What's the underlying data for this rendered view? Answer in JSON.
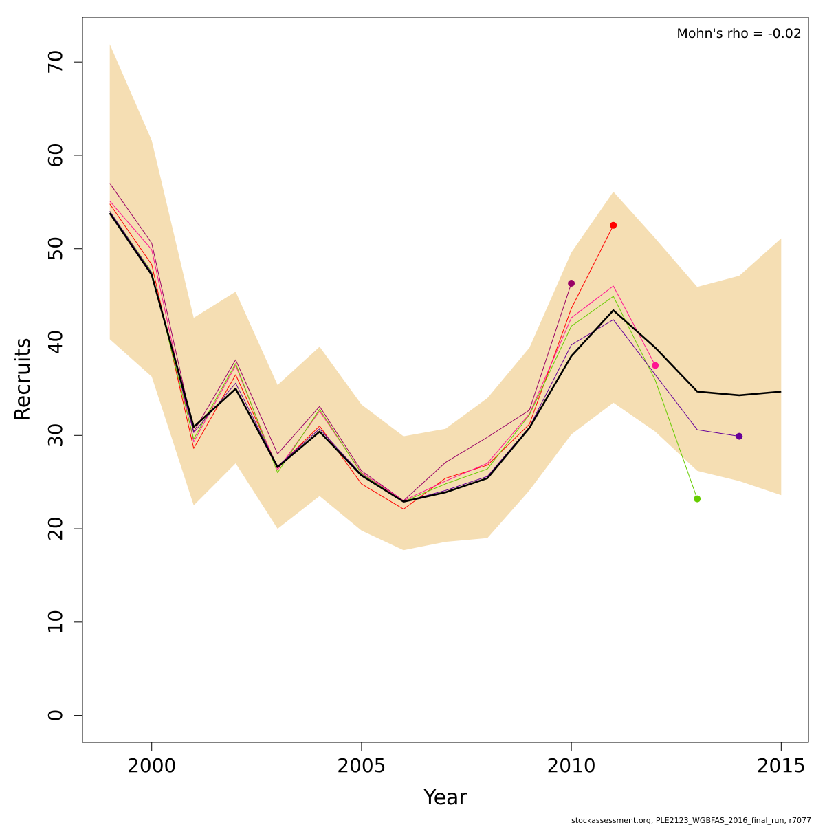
{
  "chart_data": {
    "type": "line",
    "xlabel": "Year",
    "ylabel": "Recruits",
    "xlim": [
      1998.35,
      2015.65
    ],
    "ylim": [
      -2.9,
      74.8
    ],
    "x_ticks": [
      2000,
      2005,
      2010,
      2015
    ],
    "y_ticks": [
      0,
      10,
      20,
      30,
      40,
      50,
      60,
      70
    ],
    "annotation": "Mohn's rho = -0.02",
    "footer": "stockassessment.org, PLE2123_WGBFAS_2016_final_run, r7077",
    "band": {
      "color": "#F5DEB3",
      "x": [
        1999,
        2000,
        2001,
        2002,
        2003,
        2004,
        2005,
        2006,
        2007,
        2008,
        2009,
        2010,
        2011,
        2012,
        2013,
        2014,
        2015
      ],
      "upper": [
        71.9,
        61.6,
        42.6,
        45.4,
        35.4,
        39.5,
        33.3,
        29.9,
        30.7,
        34.0,
        39.4,
        49.6,
        56.1,
        51.1,
        45.9,
        47.1,
        51.1
      ],
      "lower": [
        40.3,
        36.3,
        22.5,
        27.0,
        20.0,
        23.5,
        19.8,
        17.7,
        18.6,
        19.0,
        24.1,
        30.1,
        33.5,
        30.4,
        26.2,
        25.1,
        23.6
      ]
    },
    "series": [
      {
        "color": "#000000",
        "width": 2.6,
        "endpoint": false,
        "x": [
          1999,
          2000,
          2001,
          2002,
          2003,
          2004,
          2005,
          2006,
          2007,
          2008,
          2009,
          2010,
          2011,
          2012,
          2013,
          2014,
          2015
        ],
        "values": [
          53.8,
          47.2,
          30.9,
          35.0,
          26.6,
          30.4,
          25.7,
          22.9,
          23.9,
          25.4,
          30.8,
          38.5,
          43.4,
          39.4,
          34.7,
          34.3,
          34.7
        ]
      },
      {
        "color": "#FF0000",
        "width": 1,
        "endpoint": true,
        "x": [
          1999,
          2000,
          2001,
          2002,
          2003,
          2004,
          2005,
          2006,
          2007,
          2008,
          2009,
          2010,
          2011
        ],
        "values": [
          54.8,
          48.3,
          28.6,
          36.5,
          26.6,
          31.0,
          24.8,
          22.1,
          25.4,
          26.8,
          31.2,
          43.6,
          52.5
        ]
      },
      {
        "color": "#990066",
        "width": 1,
        "endpoint": true,
        "x": [
          1999,
          2000,
          2001,
          2002,
          2003,
          2004,
          2005,
          2006,
          2007,
          2008,
          2009,
          2010
        ],
        "values": [
          57.0,
          50.6,
          30.4,
          38.1,
          28.0,
          33.1,
          26.2,
          23.0,
          27.1,
          29.8,
          32.7,
          46.3
        ]
      },
      {
        "color": "#FF1493",
        "width": 1,
        "endpoint": true,
        "x": [
          1999,
          2000,
          2001,
          2002,
          2003,
          2004,
          2005,
          2006,
          2007,
          2008,
          2009,
          2010,
          2011,
          2012
        ],
        "values": [
          55.1,
          49.9,
          29.3,
          37.5,
          26.3,
          32.6,
          26.0,
          23.0,
          25.1,
          27.0,
          32.3,
          42.6,
          46.0,
          37.5
        ]
      },
      {
        "color": "#66CC00",
        "width": 1,
        "endpoint": true,
        "x": [
          1999,
          2000,
          2001,
          2002,
          2003,
          2004,
          2005,
          2006,
          2007,
          2008,
          2009,
          2010,
          2011,
          2012,
          2013
        ],
        "values": [
          54.0,
          47.5,
          29.6,
          37.7,
          26.0,
          32.8,
          25.9,
          22.9,
          24.8,
          26.4,
          32.2,
          41.7,
          44.9,
          35.9,
          23.2
        ]
      },
      {
        "color": "#660099",
        "width": 1,
        "endpoint": true,
        "x": [
          1999,
          2000,
          2001,
          2002,
          2003,
          2004,
          2005,
          2006,
          2007,
          2008,
          2009,
          2010,
          2011,
          2012,
          2013,
          2014
        ],
        "values": [
          54.0,
          47.4,
          30.3,
          35.6,
          26.7,
          30.7,
          25.8,
          22.9,
          24.1,
          25.6,
          30.9,
          39.7,
          42.4,
          36.5,
          30.6,
          29.9
        ]
      }
    ]
  }
}
